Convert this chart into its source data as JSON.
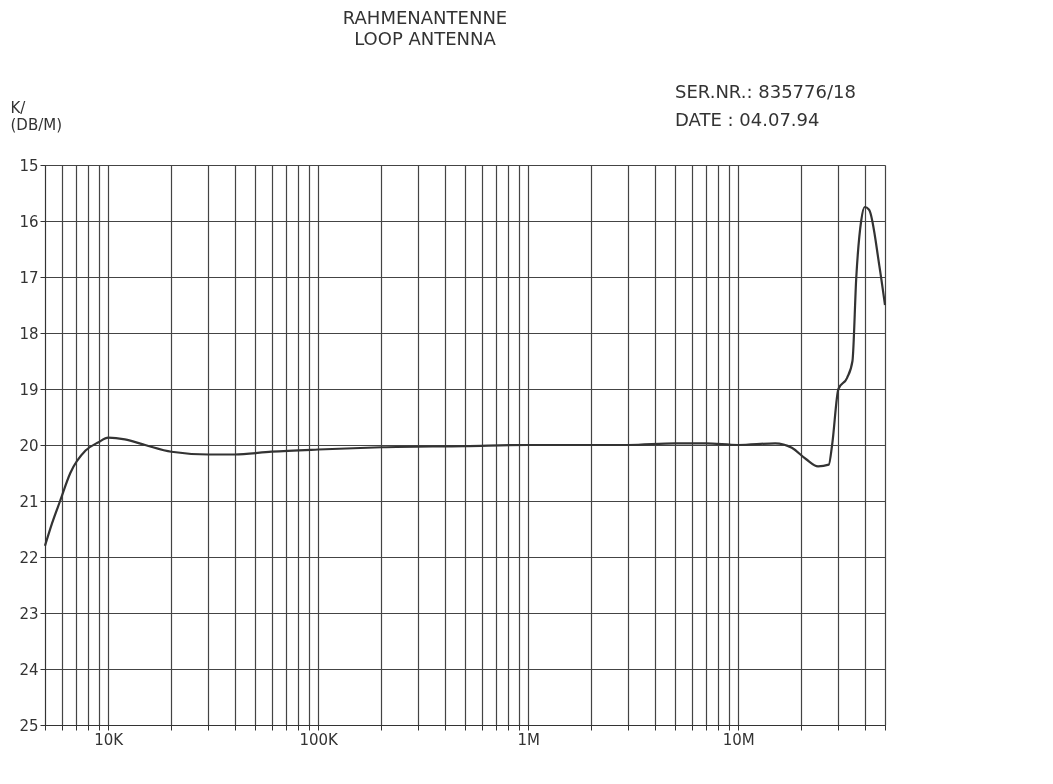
{
  "chart_data": {
    "type": "line",
    "title": "RAHMENANTENNE",
    "subtitle": "LOOP ANTENNA",
    "annotations": [
      "SER.NR.: 835776/18",
      "DATE : 04.07.94"
    ],
    "ylabel": "K/ (DB/M)",
    "log": "x",
    "grid": true,
    "line_style": "solid",
    "marker": "none",
    "xlim": [
      5000,
      50000000
    ],
    "ylim": [
      25,
      15
    ],
    "yticks": [
      15,
      16,
      17,
      18,
      19,
      20,
      21,
      22,
      23,
      24,
      25
    ],
    "xticks": [
      {
        "value": 5000,
        "label": null
      },
      {
        "value": 6000,
        "label": null
      },
      {
        "value": 7000,
        "label": null
      },
      {
        "value": 8000,
        "label": null
      },
      {
        "value": 9000,
        "label": null
      },
      {
        "value": 10000,
        "label": "10K"
      },
      {
        "value": 20000,
        "label": null
      },
      {
        "value": 30000,
        "label": null
      },
      {
        "value": 40000,
        "label": null
      },
      {
        "value": 50000,
        "label": null
      },
      {
        "value": 60000,
        "label": null
      },
      {
        "value": 70000,
        "label": null
      },
      {
        "value": 80000,
        "label": null
      },
      {
        "value": 90000,
        "label": null
      },
      {
        "value": 100000,
        "label": "100K"
      },
      {
        "value": 200000,
        "label": null
      },
      {
        "value": 300000,
        "label": null
      },
      {
        "value": 400000,
        "label": null
      },
      {
        "value": 500000,
        "label": null
      },
      {
        "value": 600000,
        "label": null
      },
      {
        "value": 700000,
        "label": null
      },
      {
        "value": 800000,
        "label": null
      },
      {
        "value": 900000,
        "label": null
      },
      {
        "value": 1000000,
        "label": "1M"
      },
      {
        "value": 2000000,
        "label": null
      },
      {
        "value": 3000000,
        "label": null
      },
      {
        "value": 4000000,
        "label": null
      },
      {
        "value": 5000000,
        "label": null
      },
      {
        "value": 6000000,
        "label": null
      },
      {
        "value": 7000000,
        "label": null
      },
      {
        "value": 8000000,
        "label": null
      },
      {
        "value": 9000000,
        "label": null
      },
      {
        "value": 10000000,
        "label": "10M"
      },
      {
        "value": 20000000,
        "label": null
      },
      {
        "value": 30000000,
        "label": null
      },
      {
        "value": 40000000,
        "label": null
      },
      {
        "value": 50000000,
        "label": null
      }
    ],
    "x": [
      5000,
      5400,
      5900,
      6600,
      7800,
      9000,
      10000,
      12000,
      15000,
      20000,
      30000,
      40000,
      60000,
      100000,
      200000,
      500000,
      1000000,
      3000000,
      5000000,
      7000000,
      10000000,
      15000000,
      18000000,
      21000000,
      24000000,
      27000000,
      28000000,
      30000000,
      33000000,
      35000000,
      36500000,
      38500000,
      40000000,
      42000000,
      47000000,
      50000000
    ],
    "series": [
      {
        "color": "#333333",
        "values": [
          21.8,
          21.4,
          21.0,
          20.5,
          20.1,
          19.95,
          19.87,
          19.9,
          20.0,
          20.12,
          20.17,
          20.17,
          20.12,
          20.08,
          20.04,
          20.02,
          20.0,
          20.0,
          19.97,
          19.97,
          20.0,
          19.97,
          20.05,
          20.25,
          20.38,
          20.35,
          20.0,
          19.0,
          18.8,
          18.5,
          17.0,
          16.0,
          15.75,
          15.8,
          16.8,
          17.5
        ]
      }
    ]
  }
}
